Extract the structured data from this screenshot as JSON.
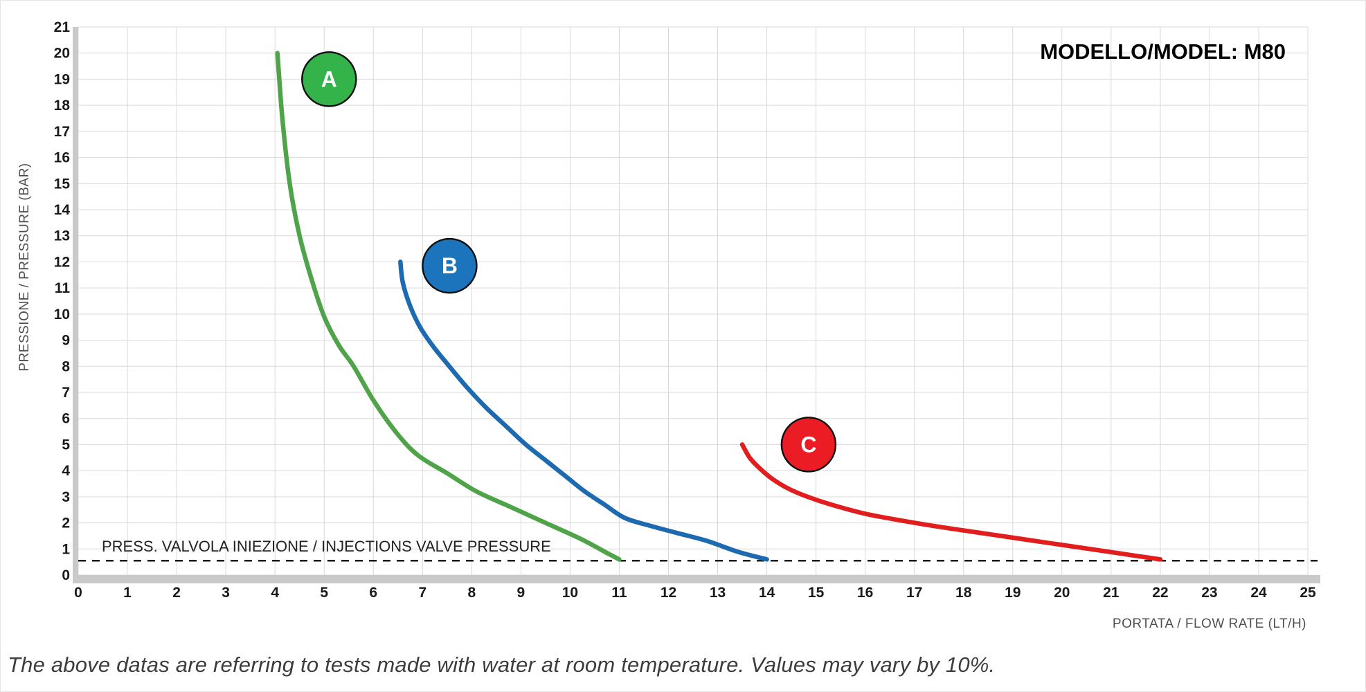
{
  "chart_data": {
    "type": "line",
    "title": "MODELLO/MODEL: M80",
    "xlabel": "PORTATA / FLOW RATE (LT/H)",
    "ylabel": "PRESSIONE / PRESSURE (BAR)",
    "xlim": [
      0,
      25
    ],
    "ylim": [
      0,
      21
    ],
    "x_ticks": [
      0,
      1,
      2,
      3,
      4,
      5,
      6,
      7,
      8,
      9,
      10,
      11,
      12,
      13,
      14,
      15,
      16,
      17,
      18,
      19,
      20,
      21,
      22,
      23,
      24,
      25
    ],
    "y_ticks": [
      0,
      1,
      2,
      3,
      4,
      5,
      6,
      7,
      8,
      9,
      10,
      11,
      12,
      13,
      14,
      15,
      16,
      17,
      18,
      19,
      20,
      21
    ],
    "grid": true,
    "legend_position": "badges-on-curves",
    "colors": {
      "grid": "#d9d9d9",
      "axis_band": "#c9c9c9",
      "tick_text": "#1a1a1a",
      "axis_label_text": "#4f4f4f",
      "dashed_line": "#1a1a1a",
      "badge_outline": "#101010",
      "badge_text": "#ffffff"
    },
    "annotation": {
      "label": "PRESS. VALVOLA INIEZIONE / INJECTIONS VALVE PRESSURE",
      "y": 0.55,
      "style": "dashed"
    },
    "series": [
      {
        "name": "A",
        "color": "#4fa348",
        "badge": {
          "letter": "A",
          "x": 5.1,
          "y": 19.0,
          "fill": "#33b34a"
        },
        "points": [
          [
            4.05,
            20
          ],
          [
            4.15,
            17.5
          ],
          [
            4.3,
            15
          ],
          [
            4.5,
            13
          ],
          [
            4.75,
            11.3
          ],
          [
            5.0,
            9.9
          ],
          [
            5.3,
            8.8
          ],
          [
            5.6,
            8.0
          ],
          [
            6.0,
            6.7
          ],
          [
            6.45,
            5.5
          ],
          [
            6.9,
            4.6
          ],
          [
            7.5,
            3.9
          ],
          [
            8.1,
            3.2
          ],
          [
            8.8,
            2.6
          ],
          [
            9.5,
            2.0
          ],
          [
            10.2,
            1.4
          ],
          [
            10.7,
            0.9
          ],
          [
            11.0,
            0.6
          ]
        ]
      },
      {
        "name": "B",
        "color": "#1d6ab0",
        "badge": {
          "letter": "B",
          "x": 7.55,
          "y": 11.85,
          "fill": "#1c75bc"
        },
        "points": [
          [
            6.55,
            12.0
          ],
          [
            6.6,
            11.2
          ],
          [
            6.75,
            10.3
          ],
          [
            6.95,
            9.5
          ],
          [
            7.2,
            8.8
          ],
          [
            7.5,
            8.1
          ],
          [
            7.9,
            7.2
          ],
          [
            8.3,
            6.4
          ],
          [
            8.7,
            5.7
          ],
          [
            9.1,
            5.0
          ],
          [
            9.5,
            4.4
          ],
          [
            9.9,
            3.8
          ],
          [
            10.3,
            3.2
          ],
          [
            10.7,
            2.7
          ],
          [
            11.1,
            2.2
          ],
          [
            11.6,
            1.9
          ],
          [
            12.2,
            1.6
          ],
          [
            12.8,
            1.3
          ],
          [
            13.4,
            0.9
          ],
          [
            14.0,
            0.6
          ]
        ]
      },
      {
        "name": "C",
        "color": "#e11d1d",
        "badge": {
          "letter": "C",
          "x": 14.85,
          "y": 5.0,
          "fill": "#ec1c24"
        },
        "points": [
          [
            13.5,
            5.0
          ],
          [
            13.65,
            4.5
          ],
          [
            13.85,
            4.1
          ],
          [
            14.1,
            3.7
          ],
          [
            14.45,
            3.3
          ],
          [
            14.9,
            2.95
          ],
          [
            15.4,
            2.65
          ],
          [
            16.0,
            2.35
          ],
          [
            16.7,
            2.1
          ],
          [
            17.5,
            1.85
          ],
          [
            18.4,
            1.6
          ],
          [
            19.3,
            1.35
          ],
          [
            20.2,
            1.1
          ],
          [
            21.1,
            0.85
          ],
          [
            22.0,
            0.6
          ]
        ]
      }
    ]
  },
  "footer": {
    "note": "The above datas are referring to tests made with water at room temperature. Values may vary by 10%."
  }
}
